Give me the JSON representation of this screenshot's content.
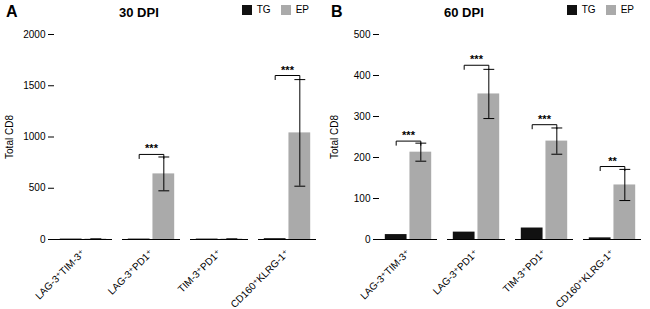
{
  "chart_data": [
    {
      "type": "bar",
      "title": "30 DPI",
      "categories": [
        "LAG-3⁺TIM-3⁺",
        "LAG-3⁺PD1⁺",
        "TIM-3⁺PD1⁺",
        "CD160⁺KLRG-1⁺"
      ],
      "series": [
        {
          "name": "TG",
          "color": "#111111",
          "values": [
            4,
            4,
            4,
            8
          ]
        },
        {
          "name": "EP",
          "color": "#aaaaaa",
          "values": [
            4,
            640,
            4,
            1040
          ],
          "errors": [
            0,
            165,
            0,
            520
          ]
        }
      ],
      "ylabel": "Total CD8",
      "ylim": [
        0,
        2000
      ],
      "yticks": [
        0,
        500,
        1000,
        1500,
        2000
      ],
      "annotations": [
        {
          "text": "A"
        },
        {
          "text": "***",
          "category": "LAG-3⁺PD1⁺",
          "y": 830
        },
        {
          "text": "***",
          "category": "CD160⁺KLRG-1⁺",
          "y": 1600
        }
      ],
      "legend": "upper right",
      "grid": false
    },
    {
      "type": "bar",
      "title": "60 DPI",
      "categories": [
        "LAG-3⁺TIM-3⁺",
        "LAG-3⁺PD1⁺",
        "TIM-3⁺PD1⁺",
        "CD160⁺KLRG-1⁺"
      ],
      "series": [
        {
          "name": "TG",
          "color": "#111111",
          "values": [
            12,
            18,
            28,
            4
          ]
        },
        {
          "name": "EP",
          "color": "#aaaaaa",
          "values": [
            213,
            355,
            240,
            133
          ],
          "errors": [
            22,
            60,
            32,
            38
          ]
        }
      ],
      "ylabel": "Total CD8",
      "ylim": [
        0,
        500
      ],
      "yticks": [
        0,
        100,
        200,
        300,
        400,
        500
      ],
      "annotations": [
        {
          "text": "B"
        },
        {
          "text": "***",
          "category": "LAG-3⁺TIM-3⁺",
          "y": 240
        },
        {
          "text": "***",
          "category": "LAG-3⁺PD1⁺",
          "y": 425
        },
        {
          "text": "***",
          "category": "TIM-3⁺PD1⁺",
          "y": 280
        },
        {
          "text": "**",
          "category": "CD160⁺KLRG-1⁺",
          "y": 178
        }
      ],
      "legend": "upper right",
      "grid": false
    }
  ]
}
